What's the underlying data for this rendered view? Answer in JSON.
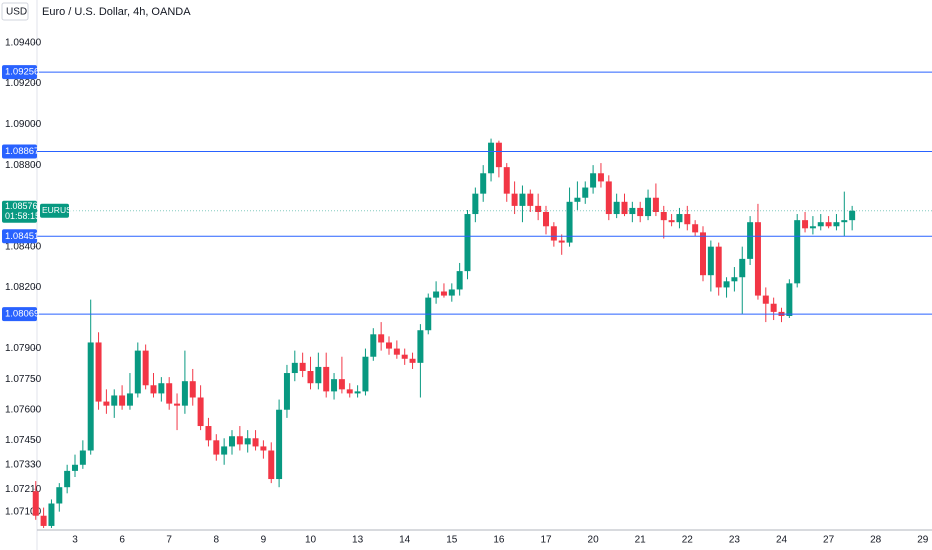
{
  "chart_data": {
    "type": "candlestick",
    "title": "Euro / U.S. Dollar, 4h, OANDA",
    "currency": "USD",
    "symbol": "EURUSD",
    "countdown": "01:58:15",
    "current_price": 1.08576,
    "up_color": "#089981",
    "down_color": "#f23645",
    "level_color": "#2962ff",
    "levels": [
      1.09256,
      1.08867,
      1.08451,
      1.08069
    ],
    "ylim": [
      1.0701,
      1.0961
    ],
    "yticks": [
      {
        "value": 1.094,
        "label": "1.09400"
      },
      {
        "value": 1.092,
        "label": "1.09200"
      },
      {
        "value": 1.09,
        "label": "1.09000"
      },
      {
        "value": 1.088,
        "label": "1.08800"
      },
      {
        "value": 1.084,
        "label": "1.08400"
      },
      {
        "value": 1.082,
        "label": "1.08200"
      },
      {
        "value": 1.079,
        "label": "1.07900"
      },
      {
        "value": 1.0775,
        "label": "1.07750"
      },
      {
        "value": 1.076,
        "label": "1.07600"
      },
      {
        "value": 1.0745,
        "label": "1.07450"
      },
      {
        "value": 1.0733,
        "label": "1.07330"
      },
      {
        "value": 1.0721,
        "label": "1.07210"
      },
      {
        "value": 1.071,
        "label": "1.07100"
      }
    ],
    "categories": [
      null,
      null,
      null,
      null,
      null,
      "3",
      null,
      null,
      null,
      null,
      null,
      "6",
      null,
      null,
      null,
      null,
      null,
      "7",
      null,
      null,
      null,
      null,
      null,
      "8",
      null,
      null,
      null,
      null,
      null,
      "9",
      null,
      null,
      null,
      null,
      null,
      "10",
      null,
      null,
      null,
      null,
      null,
      "13",
      null,
      null,
      null,
      null,
      null,
      "14",
      null,
      null,
      null,
      null,
      null,
      "15",
      null,
      null,
      null,
      null,
      null,
      "16",
      null,
      null,
      null,
      null,
      null,
      "17",
      null,
      null,
      null,
      null,
      null,
      "20",
      null,
      null,
      null,
      null,
      null,
      "21",
      null,
      null,
      null,
      null,
      null,
      "22",
      null,
      null,
      null,
      null,
      null,
      "23",
      null,
      null,
      null,
      null,
      null,
      "24",
      null,
      null,
      null,
      null,
      null,
      "27",
      null,
      null,
      null,
      null,
      null,
      "28",
      null,
      null,
      null,
      null,
      null,
      "29"
    ],
    "open": [
      1.072,
      1.0708,
      1.0703,
      1.0714,
      1.0722,
      1.073,
      1.0733,
      1.074,
      1.0793,
      1.0764,
      1.0762,
      1.0767,
      1.0762,
      1.0768,
      1.0789,
      1.0772,
      1.0768,
      1.0773,
      1.0763,
      1.0762,
      1.0774,
      1.0766,
      1.0752,
      1.0745,
      1.0738,
      1.0742,
      1.0747,
      1.0743,
      1.0746,
      1.0742,
      1.074,
      1.0726,
      1.076,
      1.0778,
      1.0783,
      1.0779,
      1.0773,
      1.0781,
      1.0769,
      1.0775,
      1.077,
      1.0768,
      1.0769,
      1.0786,
      1.0797,
      1.0793,
      1.079,
      1.0787,
      1.0785,
      1.0783,
      1.0799,
      1.0815,
      1.0818,
      1.0816,
      1.0819,
      1.0828,
      1.0856,
      1.0866,
      1.0876,
      1.0891,
      1.0879,
      1.0866,
      1.086,
      1.0866,
      1.086,
      1.0857,
      1.085,
      1.0843,
      1.0842,
      1.0862,
      1.0864,
      1.0869,
      1.0876,
      1.0872,
      1.0856,
      1.0862,
      1.0856,
      1.0859,
      1.0855,
      1.0864,
      1.0857,
      1.0853,
      1.0852,
      1.0856,
      1.0851,
      1.0847,
      1.0826,
      1.084,
      1.082,
      1.0823,
      1.0825,
      1.0834,
      1.0852,
      1.0816,
      1.0812,
      1.0808,
      1.0806,
      1.0822,
      1.0853,
      1.0849,
      1.085,
      1.0852,
      1.085,
      1.0852,
      1.0853,
      null,
      null,
      null,
      null,
      null,
      null,
      null,
      null,
      null
    ],
    "high": [
      1.0725,
      1.0712,
      1.0716,
      1.0724,
      1.0733,
      1.0738,
      1.0745,
      1.0814,
      1.0798,
      1.077,
      1.077,
      1.0772,
      1.0778,
      1.0793,
      1.0792,
      1.0778,
      1.0776,
      1.0776,
      1.0768,
      1.0789,
      1.078,
      1.0772,
      1.0756,
      1.0748,
      1.0746,
      1.075,
      1.0752,
      1.075,
      1.075,
      1.0745,
      1.0744,
      1.0765,
      1.0782,
      1.0789,
      1.0788,
      1.0786,
      1.0788,
      1.0788,
      1.0778,
      1.0786,
      1.0773,
      1.0772,
      1.079,
      1.08,
      1.0803,
      1.0796,
      1.0794,
      1.079,
      1.0788,
      1.0802,
      1.0817,
      1.0823,
      1.0822,
      1.0822,
      1.0832,
      1.0858,
      1.0869,
      1.088,
      1.0893,
      1.0892,
      1.0881,
      1.0872,
      1.087,
      1.0868,
      1.0866,
      1.086,
      1.0852,
      1.0846,
      1.0869,
      1.0872,
      1.0872,
      1.088,
      1.0881,
      1.0875,
      1.0866,
      1.0866,
      1.0862,
      1.0862,
      1.0868,
      1.0871,
      1.086,
      1.0856,
      1.0859,
      1.086,
      1.0853,
      1.085,
      1.0843,
      1.0842,
      1.0825,
      1.083,
      1.084,
      1.0855,
      1.0861,
      1.082,
      1.0815,
      1.081,
      1.0824,
      1.0856,
      1.0857,
      1.0855,
      1.0856,
      1.0855,
      1.0856,
      1.0867,
      1.086,
      null,
      null,
      null,
      null,
      null,
      null,
      null,
      null,
      null
    ],
    "low": [
      1.0706,
      1.0702,
      1.0702,
      1.071,
      1.0719,
      1.0727,
      1.0731,
      1.0738,
      1.076,
      1.0758,
      1.0756,
      1.076,
      1.076,
      1.0766,
      1.077,
      1.0766,
      1.0764,
      1.076,
      1.075,
      1.0758,
      1.0762,
      1.075,
      1.0742,
      1.0735,
      1.0733,
      1.0738,
      1.074,
      1.0739,
      1.074,
      1.0736,
      1.0724,
      1.0722,
      1.0756,
      1.0774,
      1.0776,
      1.077,
      1.077,
      1.0766,
      1.0765,
      1.0768,
      1.0766,
      1.0766,
      1.0767,
      1.0784,
      1.0789,
      1.0787,
      1.0785,
      1.0782,
      1.078,
      1.0766,
      1.0797,
      1.0812,
      1.0815,
      1.0813,
      1.0816,
      1.0824,
      1.0852,
      1.0862,
      1.0872,
      1.0874,
      1.0862,
      1.0856,
      1.0852,
      1.0857,
      1.0853,
      1.0846,
      1.084,
      1.0836,
      1.084,
      1.0858,
      1.0861,
      1.0866,
      1.0869,
      1.0853,
      1.0854,
      1.0855,
      1.0852,
      1.0852,
      1.0853,
      1.0855,
      1.0844,
      1.085,
      1.0849,
      1.0848,
      1.0845,
      1.0823,
      1.0818,
      1.0816,
      1.0815,
      1.0818,
      1.0807,
      1.0831,
      1.0814,
      1.0803,
      1.0804,
      1.0803,
      1.0805,
      1.082,
      1.0847,
      1.0846,
      1.0848,
      1.0849,
      1.0848,
      1.0845,
      1.0848,
      null,
      null,
      null,
      null,
      null,
      null,
      null,
      null,
      null
    ],
    "close": [
      1.0708,
      1.0703,
      1.0714,
      1.0722,
      1.073,
      1.0733,
      1.074,
      1.0793,
      1.0764,
      1.0762,
      1.0767,
      1.0762,
      1.0768,
      1.0789,
      1.0772,
      1.0768,
      1.0773,
      1.0763,
      1.0762,
      1.0774,
      1.0766,
      1.0752,
      1.0745,
      1.0738,
      1.0742,
      1.0747,
      1.0743,
      1.0746,
      1.0742,
      1.074,
      1.0726,
      1.076,
      1.0778,
      1.0783,
      1.0779,
      1.0773,
      1.0781,
      1.0769,
      1.0775,
      1.077,
      1.0768,
      1.0769,
      1.0786,
      1.0797,
      1.0793,
      1.079,
      1.0787,
      1.0785,
      1.0783,
      1.0799,
      1.0815,
      1.0818,
      1.0816,
      1.0819,
      1.0828,
      1.0856,
      1.0866,
      1.0876,
      1.0891,
      1.0879,
      1.0866,
      1.086,
      1.0866,
      1.086,
      1.0857,
      1.085,
      1.0843,
      1.0842,
      1.0862,
      1.0864,
      1.0869,
      1.0876,
      1.0872,
      1.0856,
      1.0862,
      1.0856,
      1.0859,
      1.0855,
      1.0864,
      1.0857,
      1.0853,
      1.0852,
      1.0856,
      1.0851,
      1.0847,
      1.0826,
      1.084,
      1.082,
      1.0823,
      1.0825,
      1.0834,
      1.0852,
      1.0816,
      1.0812,
      1.0808,
      1.0806,
      1.0822,
      1.0853,
      1.0849,
      1.085,
      1.0852,
      1.085,
      1.0852,
      1.0853,
      1.08576,
      null,
      null,
      null,
      null,
      null,
      null,
      null,
      null,
      null
    ]
  }
}
